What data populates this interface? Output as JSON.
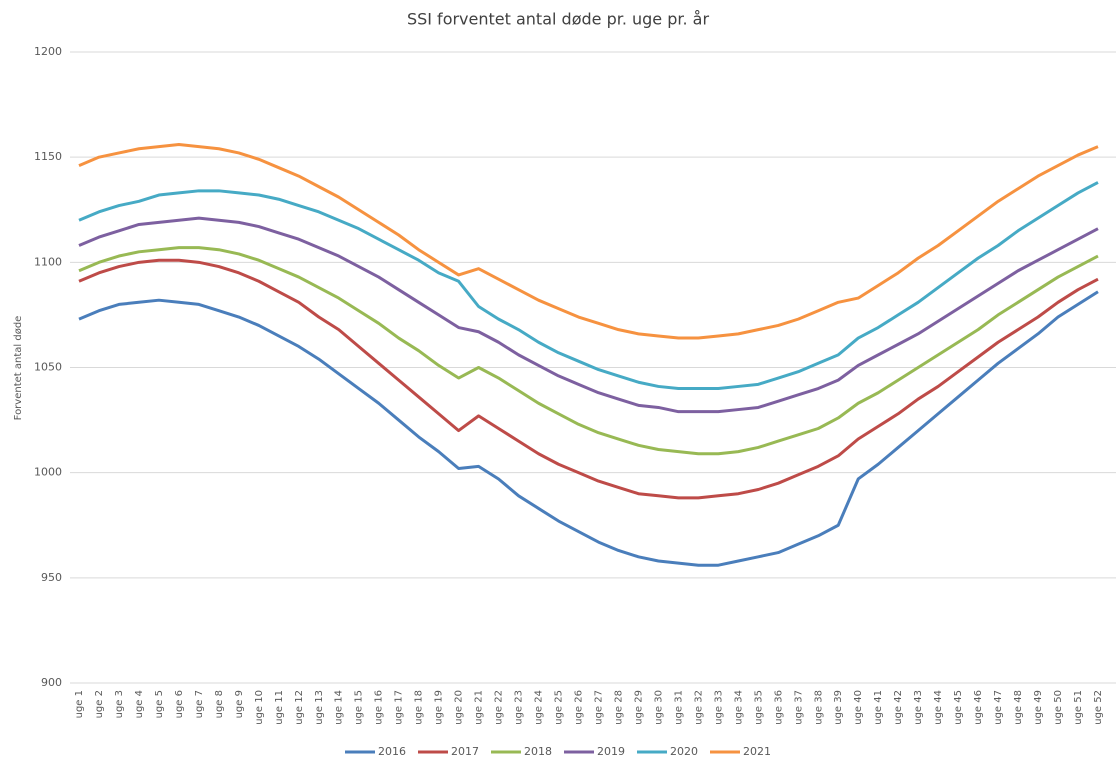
{
  "chart_data": {
    "type": "line",
    "title": "SSI forventet antal døde pr. uge pr. år",
    "y_label": "Forventet antal døde",
    "categories": [
      "uge 1",
      "uge 2",
      "uge 3",
      "uge 4",
      "uge 5",
      "uge 6",
      "uge 7",
      "uge 8",
      "uge 9",
      "uge 10",
      "uge 11",
      "uge 12",
      "uge 13",
      "uge 14",
      "uge 15",
      "uge 16",
      "uge 17",
      "uge 18",
      "uge 19",
      "uge 20",
      "uge 21",
      "uge 22",
      "uge 23",
      "uge 24",
      "uge 25",
      "uge 26",
      "uge 27",
      "uge 28",
      "uge 29",
      "uge 30",
      "uge 31",
      "uge 32",
      "uge 33",
      "uge 34",
      "uge 35",
      "uge 36",
      "uge 37",
      "uge 38",
      "uge 39",
      "uge 40",
      "uge 41",
      "uge 42",
      "uge 43",
      "uge 44",
      "uge 45",
      "uge 46",
      "uge 47",
      "uge 48",
      "uge 49",
      "uge 50",
      "uge 51",
      "uge 52"
    ],
    "series": [
      {
        "name": "2016",
        "color": "#4a7ebb",
        "values": [
          1073,
          1077,
          1080,
          1081,
          1082,
          1081,
          1080,
          1077,
          1074,
          1070,
          1065,
          1060,
          1054,
          1047,
          1040,
          1033,
          1025,
          1017,
          1010,
          1002,
          1003,
          997,
          989,
          983,
          977,
          972,
          967,
          963,
          960,
          958,
          957,
          956,
          956,
          958,
          960,
          962,
          966,
          970,
          975,
          997,
          1004,
          1012,
          1020,
          1028,
          1036,
          1044,
          1052,
          1059,
          1066,
          1074,
          1080,
          1086
        ]
      },
      {
        "name": "2017",
        "color": "#be4b48",
        "values": [
          1091,
          1095,
          1098,
          1100,
          1101,
          1101,
          1100,
          1098,
          1095,
          1091,
          1086,
          1081,
          1074,
          1068,
          1060,
          1052,
          1044,
          1036,
          1028,
          1020,
          1027,
          1021,
          1015,
          1009,
          1004,
          1000,
          996,
          993,
          990,
          989,
          988,
          988,
          989,
          990,
          992,
          995,
          999,
          1003,
          1008,
          1016,
          1022,
          1028,
          1035,
          1041,
          1048,
          1055,
          1062,
          1068,
          1074,
          1081,
          1087,
          1092
        ]
      },
      {
        "name": "2018",
        "color": "#98b954",
        "values": [
          1096,
          1100,
          1103,
          1105,
          1106,
          1107,
          1107,
          1106,
          1104,
          1101,
          1097,
          1093,
          1088,
          1083,
          1077,
          1071,
          1064,
          1058,
          1051,
          1045,
          1050,
          1045,
          1039,
          1033,
          1028,
          1023,
          1019,
          1016,
          1013,
          1011,
          1010,
          1009,
          1009,
          1010,
          1012,
          1015,
          1018,
          1021,
          1026,
          1033,
          1038,
          1044,
          1050,
          1056,
          1062,
          1068,
          1075,
          1081,
          1087,
          1093,
          1098,
          1103
        ]
      },
      {
        "name": "2019",
        "color": "#7d60a0",
        "values": [
          1108,
          1112,
          1115,
          1118,
          1119,
          1120,
          1121,
          1120,
          1119,
          1117,
          1114,
          1111,
          1107,
          1103,
          1098,
          1093,
          1087,
          1081,
          1075,
          1069,
          1067,
          1062,
          1056,
          1051,
          1046,
          1042,
          1038,
          1035,
          1032,
          1031,
          1029,
          1029,
          1029,
          1030,
          1031,
          1034,
          1037,
          1040,
          1044,
          1051,
          1056,
          1061,
          1066,
          1072,
          1078,
          1084,
          1090,
          1096,
          1101,
          1106,
          1111,
          1116
        ]
      },
      {
        "name": "2020",
        "color": "#46aac5",
        "values": [
          1120,
          1124,
          1127,
          1129,
          1132,
          1133,
          1134,
          1134,
          1133,
          1132,
          1130,
          1127,
          1124,
          1120,
          1116,
          1111,
          1106,
          1101,
          1095,
          1091,
          1079,
          1073,
          1068,
          1062,
          1057,
          1053,
          1049,
          1046,
          1043,
          1041,
          1040,
          1040,
          1040,
          1041,
          1042,
          1045,
          1048,
          1052,
          1056,
          1064,
          1069,
          1075,
          1081,
          1088,
          1095,
          1102,
          1108,
          1115,
          1121,
          1127,
          1133,
          1138
        ]
      },
      {
        "name": "2021",
        "color": "#f69240",
        "values": [
          1146,
          1150,
          1152,
          1154,
          1155,
          1156,
          1155,
          1154,
          1152,
          1149,
          1145,
          1141,
          1136,
          1131,
          1125,
          1119,
          1113,
          1106,
          1100,
          1094,
          1097,
          1092,
          1087,
          1082,
          1078,
          1074,
          1071,
          1068,
          1066,
          1065,
          1064,
          1064,
          1065,
          1066,
          1068,
          1070,
          1073,
          1077,
          1081,
          1083,
          1089,
          1095,
          1102,
          1108,
          1115,
          1122,
          1129,
          1135,
          1141,
          1146,
          1151,
          1155
        ]
      }
    ],
    "ylim": [
      900,
      1200
    ],
    "yticks": [
      900,
      950,
      1000,
      1050,
      1100,
      1150,
      1200
    ],
    "grid": true,
    "legend": "bottom"
  }
}
